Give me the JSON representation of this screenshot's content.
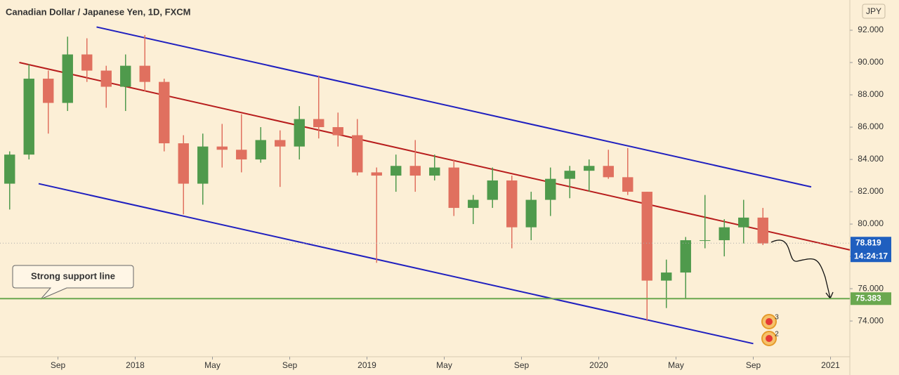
{
  "chart_data": {
    "type": "candlestick",
    "title": "Canadian Dollar / Japanese Yen, 1D, FXCM",
    "currency": "JPY",
    "up_color": "#4f9a4c",
    "down_color": "#e0705f",
    "x": [
      "2017-06",
      "2017-07",
      "2017-08",
      "2017-09",
      "2017-10",
      "2017-11",
      "2017-12",
      "2018-01",
      "2018-02",
      "2018-03",
      "2018-04",
      "2018-05",
      "2018-06",
      "2018-07",
      "2018-08",
      "2018-09",
      "2018-10",
      "2018-11",
      "2018-12",
      "2019-01",
      "2019-02",
      "2019-03",
      "2019-04",
      "2019-05",
      "2019-06",
      "2019-07",
      "2019-08",
      "2019-09",
      "2019-10",
      "2019-11",
      "2019-12",
      "2020-01",
      "2020-02",
      "2020-03",
      "2020-04",
      "2020-05",
      "2020-06",
      "2020-07",
      "2020-08",
      "2020-09"
    ],
    "open": [
      82.5,
      84.3,
      89.0,
      87.5,
      90.5,
      89.5,
      88.5,
      89.8,
      88.8,
      85.0,
      82.5,
      84.8,
      84.6,
      84.0,
      85.2,
      84.8,
      86.5,
      86.0,
      85.5,
      83.2,
      83.0,
      83.6,
      83.0,
      83.5,
      81.0,
      81.5,
      82.7,
      79.8,
      81.5,
      82.8,
      83.3,
      83.6,
      82.9,
      82.0,
      76.5,
      77.0,
      79.0,
      79.0,
      79.8,
      80.4
    ],
    "high": [
      84.5,
      89.9,
      89.5,
      91.6,
      91.5,
      89.8,
      90.5,
      91.7,
      89.0,
      85.5,
      85.6,
      86.2,
      86.8,
      86.0,
      85.8,
      87.3,
      89.2,
      86.9,
      86.5,
      83.5,
      84.3,
      85.2,
      84.3,
      84.0,
      81.8,
      83.5,
      83.0,
      82.0,
      83.5,
      83.6,
      84.0,
      84.6,
      84.7,
      82.0,
      77.8,
      79.2,
      81.8,
      80.3,
      81.5,
      81.0
    ],
    "low": [
      80.9,
      84.0,
      85.6,
      87.0,
      88.8,
      87.2,
      87.0,
      88.2,
      84.5,
      80.6,
      81.2,
      83.5,
      83.2,
      83.8,
      82.3,
      84.0,
      85.3,
      84.8,
      83.0,
      77.6,
      82.0,
      82.0,
      82.7,
      80.5,
      80.0,
      81.0,
      78.5,
      79.0,
      80.5,
      81.6,
      82.0,
      82.8,
      81.8,
      74.0,
      74.8,
      75.4,
      78.5,
      78.0,
      78.8,
      78.7
    ],
    "close": [
      84.3,
      89.0,
      87.5,
      90.5,
      89.5,
      88.5,
      89.8,
      88.8,
      85.0,
      82.5,
      84.8,
      84.6,
      84.0,
      85.2,
      84.8,
      86.5,
      86.0,
      85.5,
      83.2,
      83.0,
      83.6,
      83.0,
      83.5,
      81.0,
      81.5,
      82.7,
      79.8,
      81.5,
      82.8,
      83.3,
      83.6,
      82.9,
      82.0,
      76.5,
      77.0,
      79.0,
      79.0,
      79.8,
      80.4,
      78.8
    ],
    "xlim": [
      "2017-06",
      "2021-02"
    ],
    "xticks": [
      {
        "value": "2017-09",
        "label": "Sep"
      },
      {
        "value": "2018-01",
        "label": "2018"
      },
      {
        "value": "2018-05",
        "label": "May"
      },
      {
        "value": "2018-09",
        "label": "Sep"
      },
      {
        "value": "2019-01",
        "label": "2019"
      },
      {
        "value": "2019-05",
        "label": "May"
      },
      {
        "value": "2019-09",
        "label": "Sep"
      },
      {
        "value": "2020-01",
        "label": "2020"
      },
      {
        "value": "2020-05",
        "label": "May"
      },
      {
        "value": "2020-09",
        "label": "Sep"
      },
      {
        "value": "2021-01",
        "label": "2021"
      }
    ],
    "ylim": [
      71.7,
      93.87
    ],
    "yticks": [
      {
        "value": 74,
        "label": "74.000"
      },
      {
        "value": 76,
        "label": "76.000"
      },
      {
        "value": 78,
        "label": "78.000"
      },
      {
        "value": 80,
        "label": "80.000"
      },
      {
        "value": 82,
        "label": "82.000"
      },
      {
        "value": 84,
        "label": "84.000"
      },
      {
        "value": 86,
        "label": "86.000"
      },
      {
        "value": 88,
        "label": "88.000"
      },
      {
        "value": 90,
        "label": "90.000"
      },
      {
        "value": 92,
        "label": "92.000"
      }
    ],
    "grid": false,
    "last_price": 78.819,
    "countdown": "14:24:17",
    "support_level": 75.383,
    "support_color": "#6aa84f",
    "support_label": "Strong support line",
    "trend_lines": [
      {
        "color": "#1f1fbf",
        "x": [
          "2017-11",
          "2020-12"
        ],
        "y": [
          92.2,
          82.3
        ]
      },
      {
        "color": "#b71c1c",
        "x": [
          "2017-07",
          "2021-02"
        ],
        "y": [
          90.0,
          78.4
        ]
      },
      {
        "color": "#1f1fbf",
        "x": [
          "2017-08",
          "2020-09"
        ],
        "y": [
          82.5,
          72.6
        ]
      }
    ],
    "events": [
      "3",
      "2"
    ]
  }
}
